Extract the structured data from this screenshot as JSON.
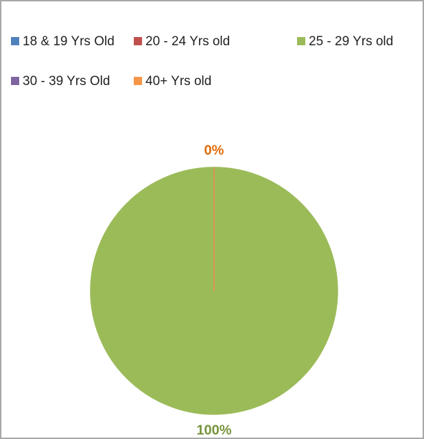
{
  "chart_data": {
    "type": "pie",
    "categories": [
      "18 & 19 Yrs Old",
      "20 - 24 Yrs old",
      "25 - 29 Yrs old",
      "30 - 39 Yrs Old",
      "40+ Yrs old"
    ],
    "values": [
      0,
      0,
      100,
      0,
      0
    ],
    "value_labels": [
      null,
      null,
      "100%",
      null,
      "0%"
    ],
    "colors": [
      "#4f81bd",
      "#c0504d",
      "#9bbb59",
      "#8064a2",
      "#f79646"
    ],
    "label_colors": [
      "#4f81bd",
      "#c0504d",
      "#77933c",
      "#8064a2",
      "#e46c0a"
    ],
    "legend": "top"
  }
}
